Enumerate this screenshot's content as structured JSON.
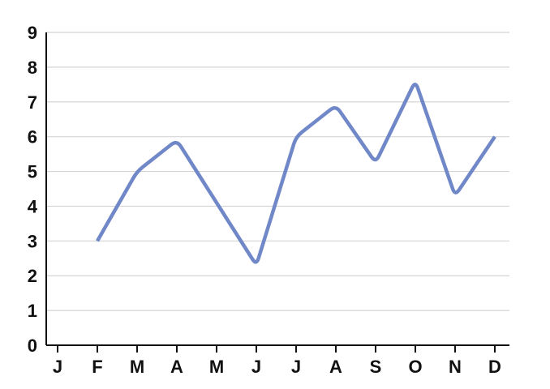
{
  "chart_data": {
    "type": "line",
    "title": "",
    "xlabel": "",
    "ylabel": "",
    "categories": [
      "J",
      "F",
      "M",
      "A",
      "M",
      "J",
      "J",
      "A",
      "S",
      "O",
      "N",
      "D"
    ],
    "series": [
      {
        "values": [
          null,
          3,
          5,
          5.9,
          4.1,
          2.3,
          6,
          6.9,
          5.25,
          7.6,
          4.3,
          6
        ]
      }
    ],
    "ylim": [
      0,
      9
    ],
    "yticks": [
      "0",
      "1",
      "2",
      "3",
      "4",
      "5",
      "6",
      "7",
      "8",
      "9"
    ],
    "grid": true,
    "legend": "none",
    "colors": {
      "line": "#7088c8",
      "grid": "#d4d4d4",
      "axis": "#111111",
      "text": "#111111"
    }
  }
}
